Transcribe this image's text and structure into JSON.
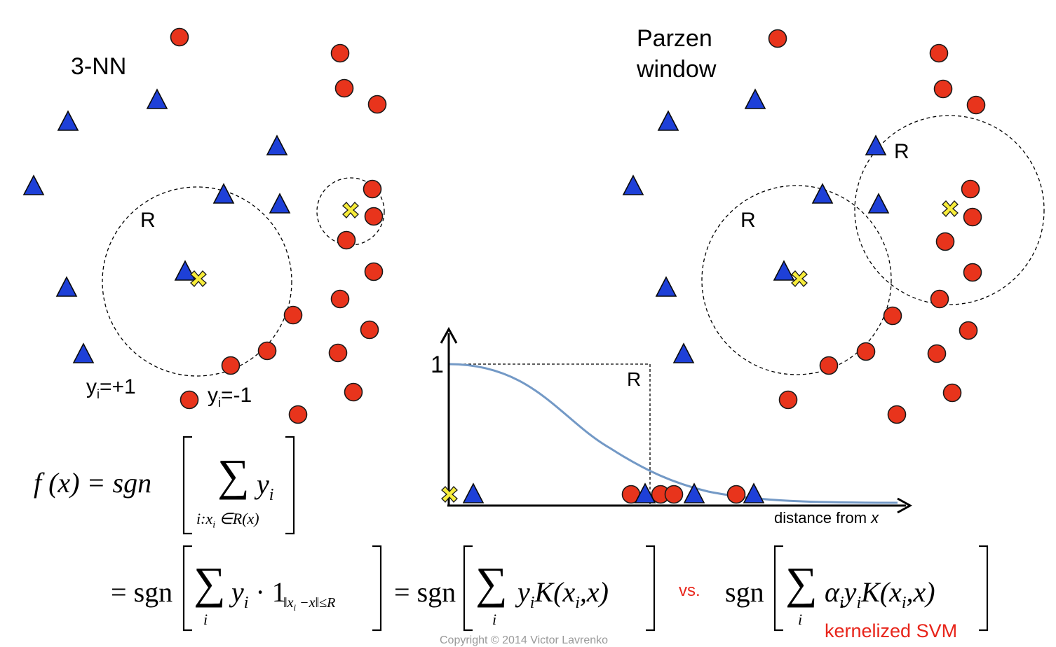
{
  "left_panel": {
    "title": "3-NN",
    "radius_label": "R",
    "legend_pos": "y",
    "legend_pos_sub": "i",
    "legend_pos_val": "=+1",
    "legend_neg": "y",
    "legend_neg_sub": "i",
    "legend_neg_val": "=-1"
  },
  "right_panel": {
    "title_line1": "Parzen",
    "title_line2": "window",
    "radius_label_1": "R",
    "radius_label_2": "R"
  },
  "kernel_plot": {
    "y_tick": "1",
    "cutoff_label": "R",
    "x_label": "distance from ",
    "x_label_var": "x"
  },
  "formulas": {
    "line1_lhs": "f (x) = sgn",
    "line1_sum_term": "y",
    "line1_sum_sub": "i",
    "line1_under": "i:x",
    "line1_under_sub": "i",
    "line1_under_rest": " ∈R(x)",
    "eq": "=",
    "sgn": "sgn",
    "sum_index": "i",
    "term_a": "y",
    "term_a_sub": "i",
    "term_a_rest": " · 1",
    "indicator_sub": "‖x",
    "indicator_sub_i": "i",
    "indicator_sub_rest": " −x‖≤R",
    "term_b": "y",
    "term_b_sub": "i",
    "term_b_rest": "K(x",
    "term_b_sub2": "i",
    "term_b_end": ",x)",
    "vs": "vs.",
    "term_c_alpha": "α",
    "term_c_sub1": "i",
    "term_c_y": "y",
    "term_c_sub2": "i",
    "term_c_rest": "K(x",
    "term_c_sub3": "i",
    "term_c_end": ",x)",
    "svm_label": "kernelized SVM"
  },
  "footer": "Copyright © 2014 Victor Lavrenko",
  "colors": {
    "positive": "#1e40d8",
    "negative": "#e8341c",
    "query": "#f7ec3a",
    "curve": "#7399c6",
    "svm_label": "#e8241a"
  }
}
